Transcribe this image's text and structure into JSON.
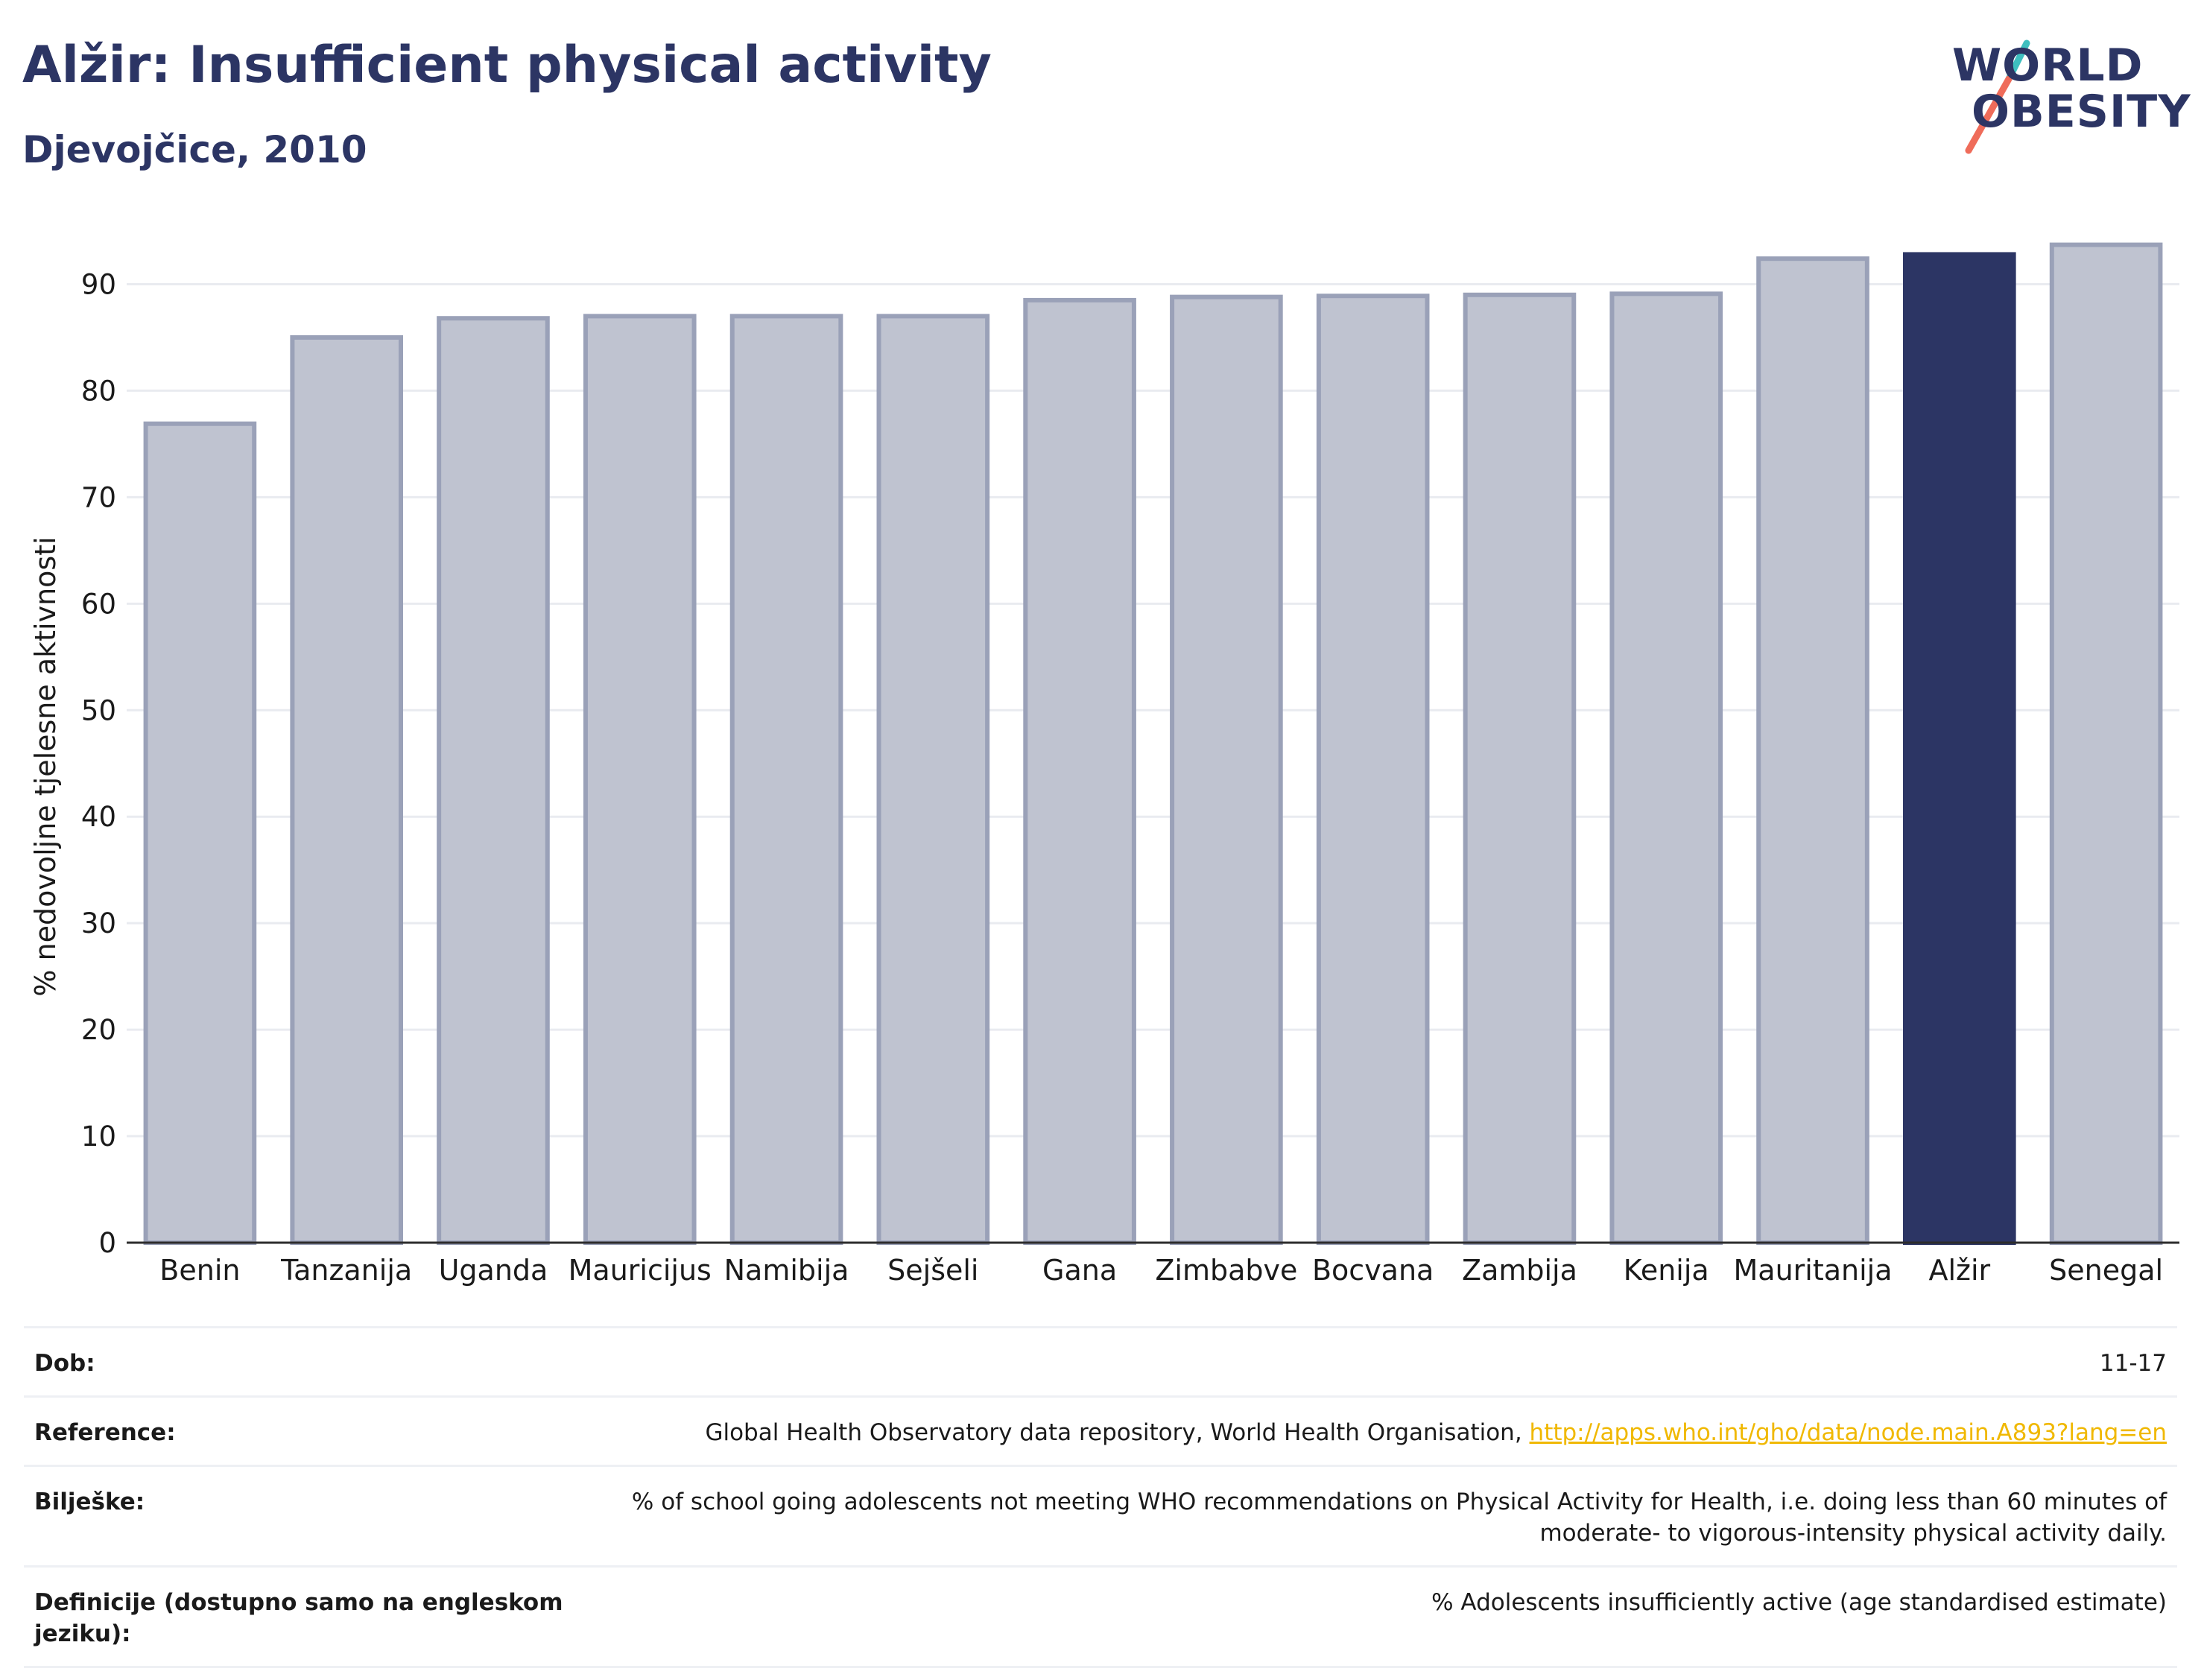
{
  "header": {
    "title": "Alžir: Insufficient physical activity",
    "subtitle": "Djevojčice, 2010"
  },
  "logo": {
    "line1": "WORLD",
    "line2": "OBESITY",
    "slash_colors": [
      "#3ebfbf",
      "#ef6c5a"
    ]
  },
  "colors": {
    "highlight": "#2c3564",
    "bar": "#bfc3d0",
    "bar_edge": "#9aa1b8",
    "grid": "#e9ebf0",
    "axis": "#2c2c2c"
  },
  "chart_data": {
    "type": "bar",
    "categories": [
      "Benin",
      "Tanzanija",
      "Uganda",
      "Mauricijus",
      "Namibija",
      "Sejšeli",
      "Gana",
      "Zimbabve",
      "Bocvana",
      "Zambija",
      "Kenija",
      "Mauritanija",
      "Alžir",
      "Senegal"
    ],
    "values": [
      76.9,
      85.0,
      86.8,
      87.0,
      87.0,
      87.0,
      88.5,
      88.8,
      88.9,
      89.0,
      89.1,
      92.4,
      92.8,
      93.7
    ],
    "highlight": "Alžir",
    "ylabel": "% nedovoljne tjelesne aktivnosti",
    "xlabel": "",
    "ylim": [
      0,
      95
    ],
    "yticks": [
      0,
      10,
      20,
      30,
      40,
      50,
      60,
      70,
      80,
      90
    ],
    "grid": true
  },
  "meta": [
    {
      "label": "Dob:",
      "value": "11-17"
    },
    {
      "label": "Reference:",
      "value": "Global Health Observatory data repository, World Health Organisation, ",
      "link": "http://apps.who.int/gho/data/node.main.A893?lang=en"
    },
    {
      "label": "Bilješke:",
      "value": "% of school going adolescents not meeting WHO recommendations on Physical Activity for Health, i.e. doing less than 60 minutes of moderate- to vigorous-intensity physical activity daily."
    },
    {
      "label": "Definicije (dostupno samo na engleskom jeziku):",
      "value": "% Adolescents insufficiently active (age standardised estimate)"
    }
  ]
}
